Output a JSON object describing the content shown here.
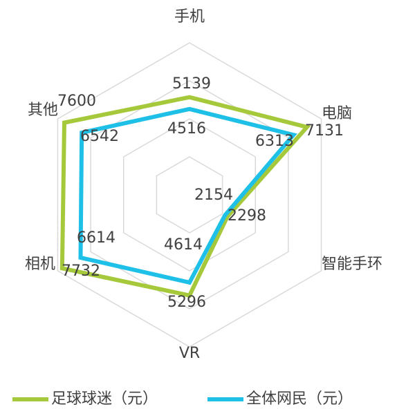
{
  "chart_data": {
    "type": "radar",
    "categories": [
      "手机",
      "电脑",
      "智能手环",
      "VR",
      "相机",
      "其他"
    ],
    "series": [
      {
        "name": "足球球迷（元）",
        "color": "#a5c93a",
        "values": [
          5139,
          7131,
          2298,
          5296,
          7732,
          7600
        ]
      },
      {
        "name": "全体网民（元）",
        "color": "#1fc0e8",
        "values": [
          4516,
          6313,
          2154,
          4614,
          6614,
          6542
        ]
      }
    ],
    "ylim": [
      0,
      8000
    ],
    "yticks": [
      0,
      2000,
      4000,
      6000,
      8000
    ],
    "grid": true,
    "legend": "bottom"
  }
}
